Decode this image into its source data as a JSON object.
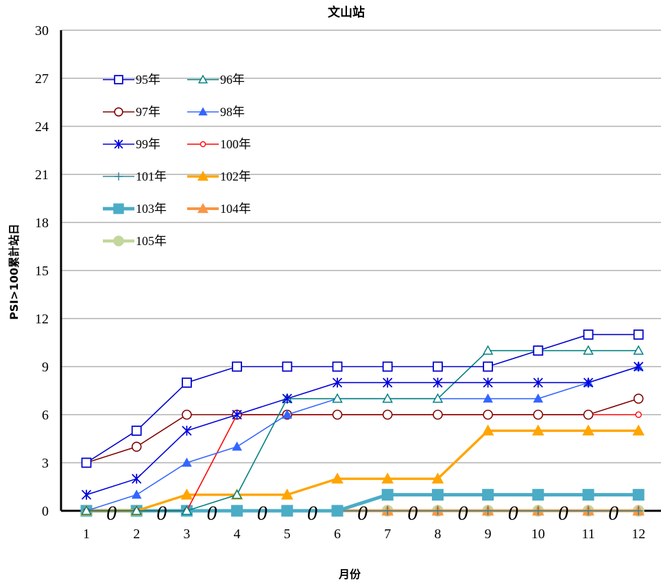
{
  "chart_data": {
    "type": "line",
    "title": "文山站",
    "xlabel": "月份",
    "ylabel": "PSI>100累計站日",
    "categories": [
      "1",
      "2",
      "3",
      "4",
      "5",
      "6",
      "7",
      "8",
      "9",
      "10",
      "11",
      "12"
    ],
    "ylim": [
      0,
      30
    ],
    "yticks": [
      0,
      3,
      6,
      9,
      12,
      15,
      18,
      21,
      24,
      27,
      30
    ],
    "grid": "horizontal",
    "legend_position": "top-left",
    "series": [
      {
        "name": "95年",
        "color": "#0000CC",
        "marker": "open-square",
        "values": [
          3,
          5,
          8,
          9,
          9,
          9,
          9,
          9,
          9,
          10,
          11,
          11
        ]
      },
      {
        "name": "96年",
        "color": "#008080",
        "marker": "open-triangle",
        "values": [
          0,
          0,
          0,
          1,
          7,
          7,
          7,
          7,
          10,
          10,
          10,
          10
        ]
      },
      {
        "name": "97年",
        "color": "#800000",
        "marker": "open-circle",
        "values": [
          3,
          4,
          6,
          6,
          6,
          6,
          6,
          6,
          6,
          6,
          6,
          7
        ]
      },
      {
        "name": "98年",
        "color": "#3366FF",
        "marker": "filled-triangle",
        "values": [
          0,
          1,
          3,
          4,
          6,
          7,
          7,
          7,
          7,
          7,
          8,
          9
        ]
      },
      {
        "name": "99年",
        "color": "#0000DD",
        "marker": "star",
        "values": [
          1,
          2,
          5,
          6,
          7,
          8,
          8,
          8,
          8,
          8,
          8,
          9
        ]
      },
      {
        "name": "100年",
        "color": "#FF0000",
        "marker": "small-open-circle",
        "values": [
          0,
          0,
          0,
          6,
          6,
          6,
          6,
          6,
          6,
          6,
          6,
          6
        ]
      },
      {
        "name": "101年",
        "color": "#31859C",
        "marker": "plus",
        "values": [
          0,
          0,
          0,
          0,
          0,
          0,
          0,
          0,
          0,
          0,
          0,
          0
        ]
      },
      {
        "name": "102年",
        "color": "#FFA500",
        "marker": "filled-triangle",
        "values": [
          0,
          0,
          1,
          1,
          1,
          2,
          2,
          2,
          5,
          5,
          5,
          5
        ]
      },
      {
        "name": "103年",
        "color": "#4BACC6",
        "marker": "filled-square",
        "values": [
          0,
          0,
          0,
          0,
          0,
          0,
          1,
          1,
          1,
          1,
          1,
          1
        ]
      },
      {
        "name": "104年",
        "color": "#F79646",
        "marker": "filled-triangle",
        "values": [
          0,
          0,
          0,
          0,
          0,
          0,
          0,
          0,
          0,
          0,
          0,
          0
        ]
      },
      {
        "name": "105年",
        "color": "#C3D69B",
        "marker": "filled-circle",
        "values": [
          0,
          0,
          0,
          0,
          0,
          0,
          0,
          0,
          0,
          0,
          0,
          0
        ]
      }
    ],
    "annotations": {
      "zero_labels": [
        "0",
        "0",
        "0",
        "0",
        "0",
        "0",
        "0",
        "0",
        "0",
        "0",
        "0"
      ],
      "zero_label_positions_x": [
        1.5,
        2.5,
        3.5,
        4.5,
        5.5,
        6.5,
        7.5,
        8.5,
        9.5,
        10.5,
        11.5
      ]
    }
  }
}
